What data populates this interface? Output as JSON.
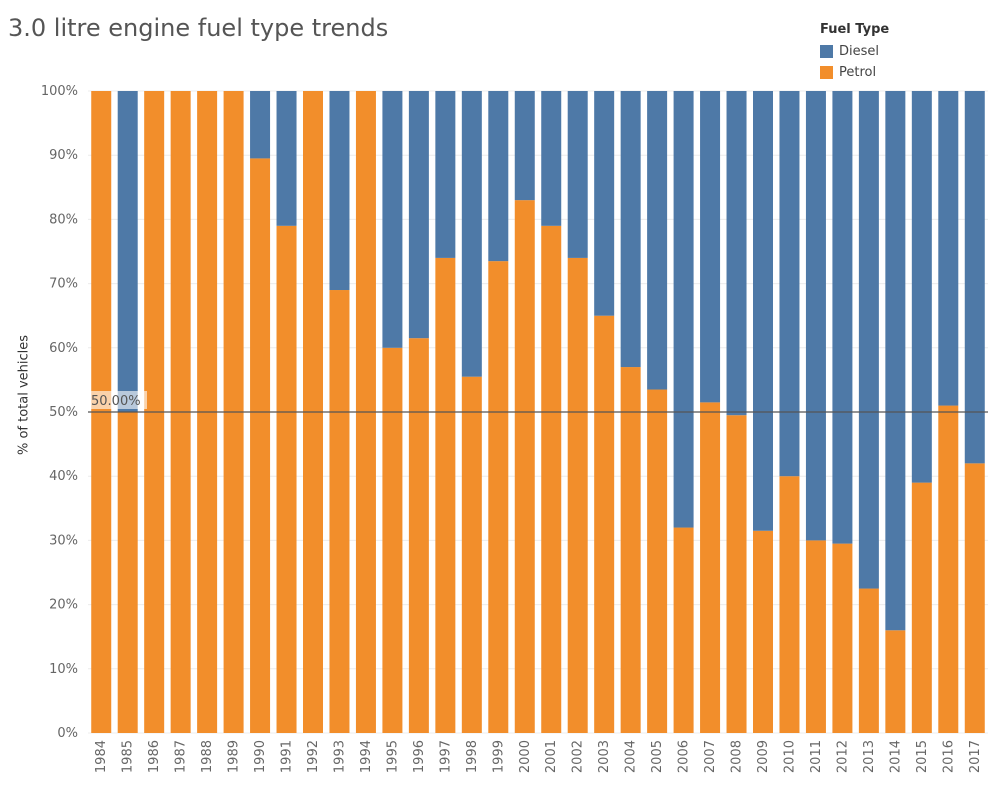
{
  "chart_data": {
    "type": "bar",
    "stacked": true,
    "normalized_percent": true,
    "title": "3.0 litre engine fuel type trends",
    "ylabel": "% of total vehicles",
    "xlabel": "",
    "ylim": [
      0,
      100
    ],
    "yticks": [
      "0%",
      "10%",
      "20%",
      "30%",
      "40%",
      "50%",
      "60%",
      "70%",
      "80%",
      "90%",
      "100%"
    ],
    "grid": true,
    "legend": {
      "title": "Fuel Type",
      "placement": "top-right",
      "items": [
        {
          "name": "Diesel",
          "color": "#4e79a7"
        },
        {
          "name": "Petrol",
          "color": "#f28e2b"
        }
      ]
    },
    "reference_line": {
      "value": 50,
      "label": "50.00%",
      "color": "#555555"
    },
    "categories": [
      "1984",
      "1985",
      "1986",
      "1987",
      "1988",
      "1989",
      "1990",
      "1991",
      "1992",
      "1993",
      "1994",
      "1995",
      "1996",
      "1997",
      "1998",
      "1999",
      "2000",
      "2001",
      "2002",
      "2003",
      "2004",
      "2005",
      "2006",
      "2007",
      "2008",
      "2009",
      "2010",
      "2011",
      "2012",
      "2013",
      "2014",
      "2015",
      "2016",
      "2017"
    ],
    "series": [
      {
        "name": "Petrol",
        "color": "#f28e2b",
        "values": [
          100,
          50,
          100,
          100,
          100,
          100,
          89.5,
          79,
          100,
          69,
          100,
          60,
          61.5,
          74,
          55.5,
          73.5,
          83,
          79,
          74,
          65,
          57,
          53.5,
          32,
          51.5,
          49.5,
          31.5,
          40,
          30,
          29.5,
          22.5,
          16,
          39,
          51,
          42
        ]
      },
      {
        "name": "Diesel",
        "color": "#4e79a7",
        "values": [
          0,
          50,
          0,
          0,
          0,
          0,
          10.5,
          21,
          0,
          31,
          0,
          40,
          38.5,
          26,
          44.5,
          26.5,
          17,
          21,
          26,
          35,
          43,
          46.5,
          68,
          48.5,
          50.5,
          68.5,
          60,
          70,
          70.5,
          77.5,
          84,
          61,
          49,
          58
        ]
      }
    ]
  }
}
